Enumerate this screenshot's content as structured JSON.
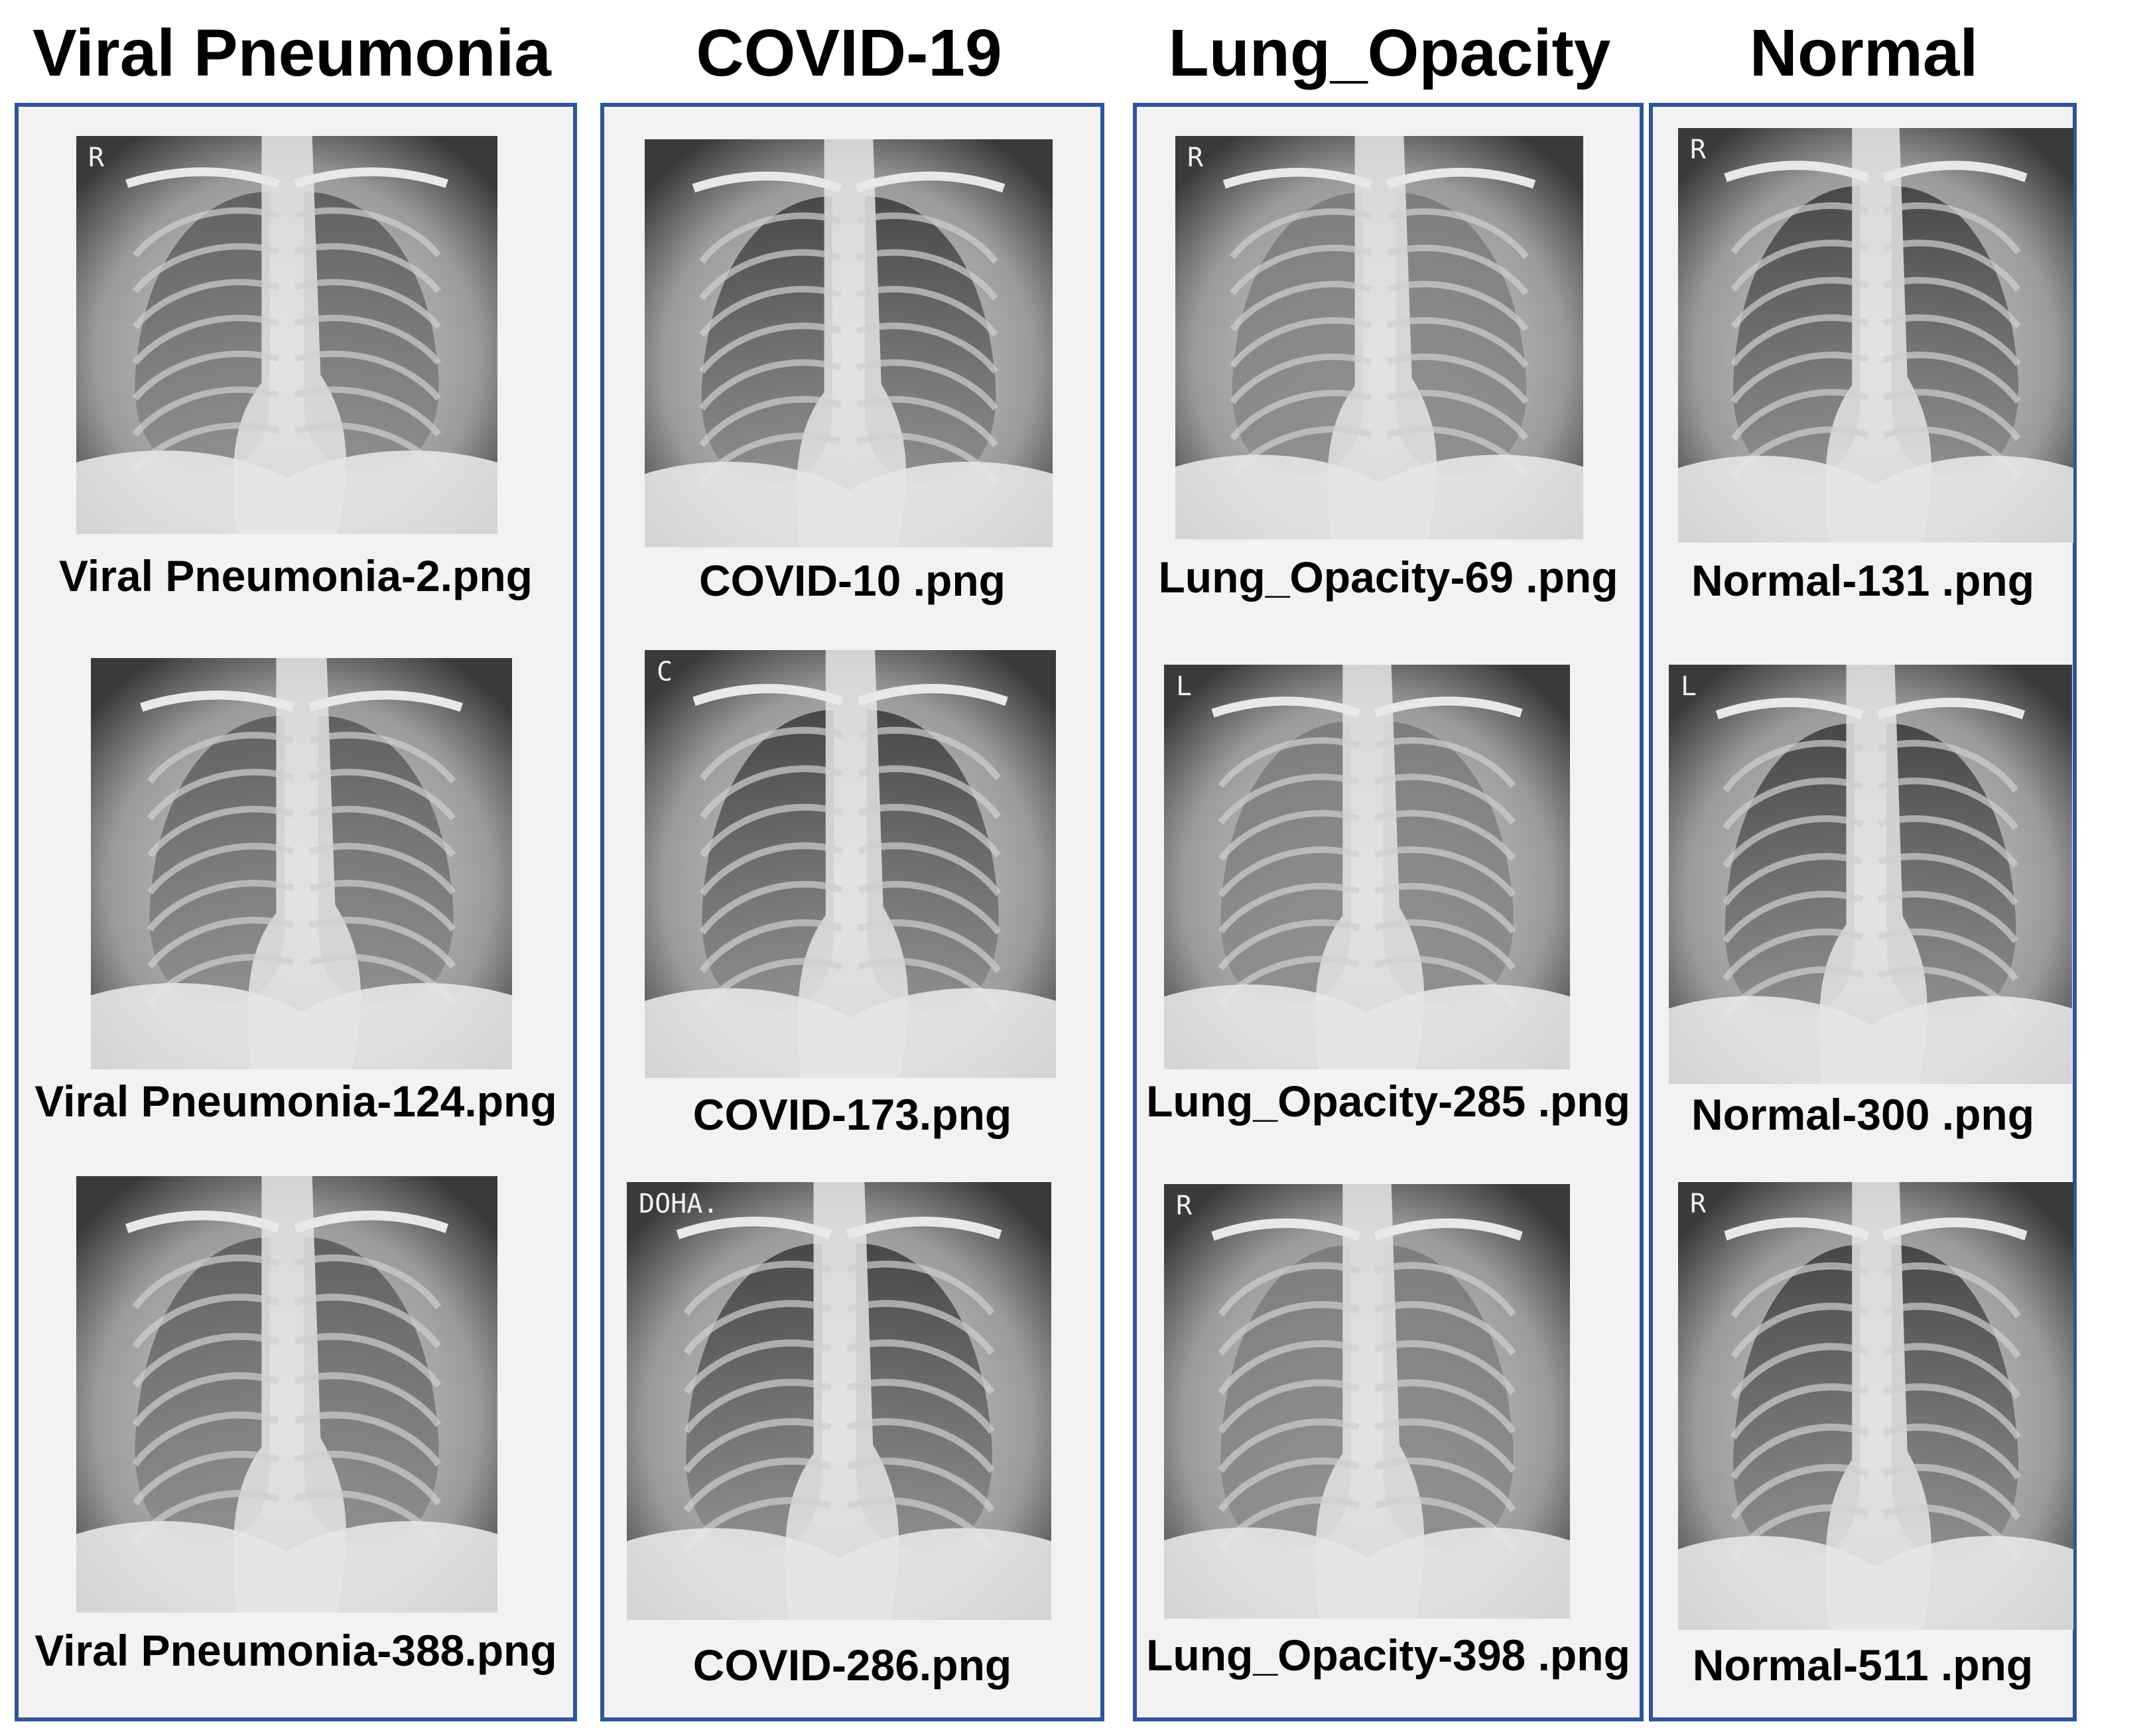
{
  "columns": [
    {
      "title": "Viral Pneumonia",
      "images": [
        {
          "caption": "Viral Pneumonia-2.png",
          "marker": "R"
        },
        {
          "caption": "Viral Pneumonia-124.png",
          "marker": ""
        },
        {
          "caption": "Viral Pneumonia-388.png",
          "marker": ""
        }
      ]
    },
    {
      "title": "COVID-19",
      "images": [
        {
          "caption": "COVID-10 .png",
          "marker": ""
        },
        {
          "caption": "COVID-173.png",
          "marker": "C"
        },
        {
          "caption": "COVID-286.png",
          "marker": "DOHA."
        }
      ]
    },
    {
      "title": "Lung_Opacity",
      "images": [
        {
          "caption": "Lung_Opacity-69 .png",
          "marker": "R"
        },
        {
          "caption": "Lung_Opacity-285 .png",
          "marker": "L"
        },
        {
          "caption": "Lung_Opacity-398 .png",
          "marker": "R"
        }
      ]
    },
    {
      "title": "Normal",
      "images": [
        {
          "caption": "Normal-131 .png",
          "marker": "R"
        },
        {
          "caption": "Normal-300 .png",
          "marker": "L"
        },
        {
          "caption": "Normal-511 .png",
          "marker": "R"
        }
      ]
    }
  ],
  "colors": {
    "panel_border": "#2f5597",
    "panel_background": "#f2f2f2"
  }
}
